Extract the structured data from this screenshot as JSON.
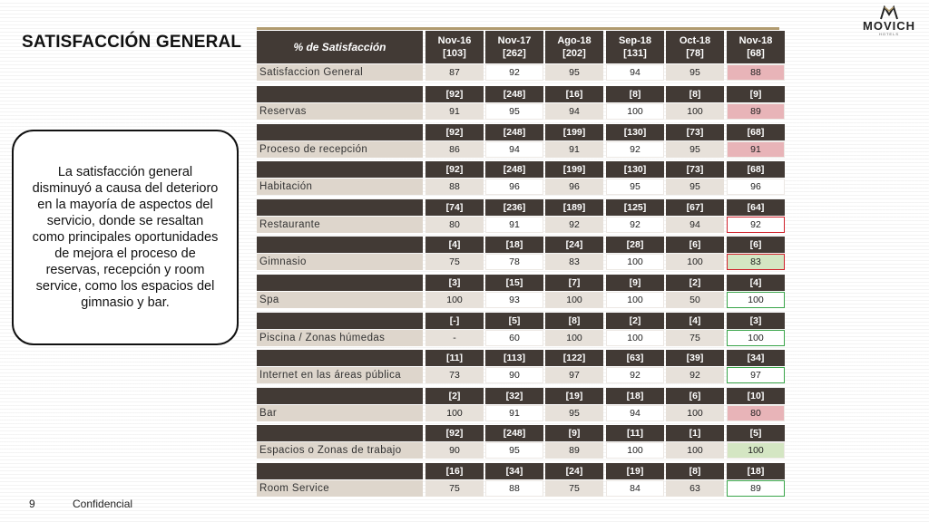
{
  "slide": {
    "title": "SATISFACCIÓN GENERAL",
    "page_number": "9",
    "footer": "Confidencial",
    "logo_text": "MOVICH",
    "logo_sub": "HOTELS"
  },
  "callout": {
    "text": "La satisfacción general disminuyó a causa del deterioro en la mayoría de aspectos del servicio, donde se resaltan como principales oportunidades de mejora el proceso de reservas, recepción y room service, como los espacios del gimnasio y bar."
  },
  "table": {
    "header_label": "% de Satisfacción",
    "columns": [
      {
        "month": "Nov-16",
        "n": "[103]"
      },
      {
        "month": "Nov-17",
        "n": "[262]"
      },
      {
        "month": "Ago-18",
        "n": "[202]"
      },
      {
        "month": "Sep-18",
        "n": "[131]"
      },
      {
        "month": "Oct-18",
        "n": "[78]"
      },
      {
        "month": "Nov-18",
        "n": "[68]"
      }
    ],
    "rows": [
      {
        "label": "Satisfaccion General",
        "counts": [],
        "values": [
          "87",
          "92",
          "95",
          "94",
          "95",
          "88"
        ],
        "last_fill": "red",
        "last_box": ""
      },
      {
        "label": "Reservas",
        "counts": [
          "[92]",
          "[248]",
          "[16]",
          "[8]",
          "[8]",
          "[9]"
        ],
        "values": [
          "91",
          "95",
          "94",
          "100",
          "100",
          "89"
        ],
        "last_fill": "red",
        "last_box": ""
      },
      {
        "label": "Proceso de recepción",
        "counts": [
          "[92]",
          "[248]",
          "[199]",
          "[130]",
          "[73]",
          "[68]"
        ],
        "values": [
          "86",
          "94",
          "91",
          "92",
          "95",
          "91"
        ],
        "last_fill": "red",
        "last_box": ""
      },
      {
        "label": "Habitación",
        "counts": [
          "[92]",
          "[248]",
          "[199]",
          "[130]",
          "[73]",
          "[68]"
        ],
        "values": [
          "88",
          "96",
          "96",
          "95",
          "95",
          "96"
        ],
        "last_fill": "",
        "last_box": ""
      },
      {
        "label": "Restaurante",
        "counts": [
          "[74]",
          "[236]",
          "[189]",
          "[125]",
          "[67]",
          "[64]"
        ],
        "values": [
          "80",
          "91",
          "92",
          "92",
          "94",
          "92"
        ],
        "last_fill": "",
        "last_box": "red"
      },
      {
        "label": "Gimnasio",
        "counts": [
          "[4]",
          "[18]",
          "[24]",
          "[28]",
          "[6]",
          "[6]"
        ],
        "values": [
          "75",
          "78",
          "83",
          "100",
          "100",
          "83"
        ],
        "last_fill": "green",
        "last_box": "red"
      },
      {
        "label": "Spa",
        "counts": [
          "[3]",
          "[15]",
          "[7]",
          "[9]",
          "[2]",
          "[4]"
        ],
        "values": [
          "100",
          "93",
          "100",
          "100",
          "50",
          "100"
        ],
        "last_fill": "",
        "last_box": "green"
      },
      {
        "label": "Piscina / Zonas húmedas",
        "counts": [
          "[-]",
          "[5]",
          "[8]",
          "[2]",
          "[4]",
          "[3]"
        ],
        "values": [
          "-",
          "60",
          "100",
          "100",
          "75",
          "100"
        ],
        "last_fill": "",
        "last_box": "green"
      },
      {
        "label": "Internet en las áreas pública",
        "counts": [
          "[11]",
          "[113]",
          "[122]",
          "[63]",
          "[39]",
          "[34]"
        ],
        "values": [
          "73",
          "90",
          "97",
          "92",
          "92",
          "97"
        ],
        "last_fill": "",
        "last_box": "green"
      },
      {
        "label": "Bar",
        "counts": [
          "[2]",
          "[32]",
          "[19]",
          "[18]",
          "[6]",
          "[10]"
        ],
        "values": [
          "100",
          "91",
          "95",
          "94",
          "100",
          "80"
        ],
        "last_fill": "red",
        "last_box": ""
      },
      {
        "label": "Espacios o Zonas de trabajo",
        "counts": [
          "[92]",
          "[248]",
          "[9]",
          "[11]",
          "[1]",
          "[5]"
        ],
        "values": [
          "90",
          "95",
          "89",
          "100",
          "100",
          "100"
        ],
        "last_fill": "green",
        "last_box": ""
      },
      {
        "label": "Room Service",
        "counts": [
          "[16]",
          "[34]",
          "[24]",
          "[19]",
          "[8]",
          "[18]"
        ],
        "values": [
          "75",
          "88",
          "75",
          "84",
          "63",
          "89"
        ],
        "last_fill": "",
        "last_box": "green"
      }
    ],
    "colors": {
      "header_bg": "#423a35",
      "label_bg": "#ded6cc",
      "red_fill": "#e8b4b8",
      "green_fill": "#d4e6c3",
      "red_border": "#d0202a",
      "green_border": "#3aa54a"
    }
  }
}
